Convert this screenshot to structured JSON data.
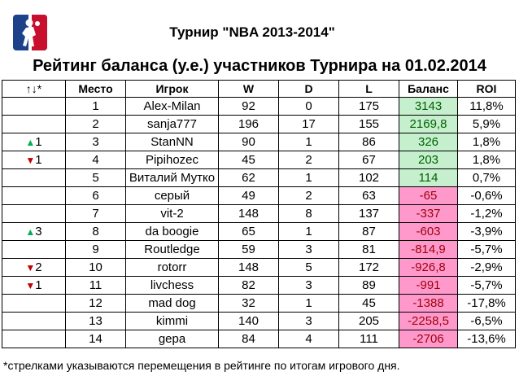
{
  "header": {
    "logo_name": "nba-logo",
    "title": "Турнир \"NBA 2013-2014\"",
    "subtitle": "Рейтинг баланса (у.е.) участников Турнира на 01.02.2014"
  },
  "colors": {
    "positive_fill": "#c6efce",
    "negative_fill": "#ff99cc",
    "arrow_up": "#00b050",
    "arrow_down": "#c00000"
  },
  "table": {
    "columns": [
      "↑↓*",
      "Место",
      "Игрок",
      "W",
      "D",
      "L",
      "Баланс",
      "ROI"
    ],
    "rows": [
      {
        "move_dir": "",
        "move_num": "",
        "place": "1",
        "player": "Alex-Milan",
        "w": "92",
        "d": "0",
        "l": "175",
        "balance": "3143",
        "roi": "11,8%",
        "sign": "pos"
      },
      {
        "move_dir": "",
        "move_num": "",
        "place": "2",
        "player": "sanja777",
        "w": "196",
        "d": "17",
        "l": "155",
        "balance": "2169,8",
        "roi": "5,9%",
        "sign": "pos"
      },
      {
        "move_dir": "up",
        "move_num": "1",
        "place": "3",
        "player": "StanNN",
        "w": "90",
        "d": "1",
        "l": "86",
        "balance": "326",
        "roi": "1,8%",
        "sign": "pos"
      },
      {
        "move_dir": "down",
        "move_num": "1",
        "place": "4",
        "player": "Pipihozec",
        "w": "45",
        "d": "2",
        "l": "67",
        "balance": "203",
        "roi": "1,8%",
        "sign": "pos"
      },
      {
        "move_dir": "",
        "move_num": "",
        "place": "5",
        "player": "Виталий Мутко",
        "w": "62",
        "d": "1",
        "l": "102",
        "balance": "114",
        "roi": "0,7%",
        "sign": "pos"
      },
      {
        "move_dir": "",
        "move_num": "",
        "place": "6",
        "player": "серый",
        "w": "49",
        "d": "2",
        "l": "63",
        "balance": "-65",
        "roi": "-0,6%",
        "sign": "neg"
      },
      {
        "move_dir": "",
        "move_num": "",
        "place": "7",
        "player": "vit-2",
        "w": "148",
        "d": "8",
        "l": "137",
        "balance": "-337",
        "roi": "-1,2%",
        "sign": "neg"
      },
      {
        "move_dir": "up",
        "move_num": "3",
        "place": "8",
        "player": "da boogie",
        "w": "65",
        "d": "1",
        "l": "87",
        "balance": "-603",
        "roi": "-3,9%",
        "sign": "neg"
      },
      {
        "move_dir": "",
        "move_num": "",
        "place": "9",
        "player": "Routledge",
        "w": "59",
        "d": "3",
        "l": "81",
        "balance": "-814,9",
        "roi": "-5,7%",
        "sign": "neg"
      },
      {
        "move_dir": "down",
        "move_num": "2",
        "place": "10",
        "player": "rotorr",
        "w": "148",
        "d": "5",
        "l": "172",
        "balance": "-926,8",
        "roi": "-2,9%",
        "sign": "neg"
      },
      {
        "move_dir": "down",
        "move_num": "1",
        "place": "11",
        "player": "livchess",
        "w": "82",
        "d": "3",
        "l": "89",
        "balance": "-991",
        "roi": "-5,7%",
        "sign": "neg"
      },
      {
        "move_dir": "",
        "move_num": "",
        "place": "12",
        "player": "mad dog",
        "w": "32",
        "d": "1",
        "l": "45",
        "balance": "-1388",
        "roi": "-17,8%",
        "sign": "neg"
      },
      {
        "move_dir": "",
        "move_num": "",
        "place": "13",
        "player": "kimmi",
        "w": "140",
        "d": "3",
        "l": "205",
        "balance": "-2258,5",
        "roi": "-6,5%",
        "sign": "neg"
      },
      {
        "move_dir": "",
        "move_num": "",
        "place": "14",
        "player": "gepa",
        "w": "84",
        "d": "4",
        "l": "111",
        "balance": "-2706",
        "roi": "-13,6%",
        "sign": "neg"
      }
    ]
  },
  "footnote": "*стрелками указываются перемещения в рейтинге по итогам игрового дня."
}
